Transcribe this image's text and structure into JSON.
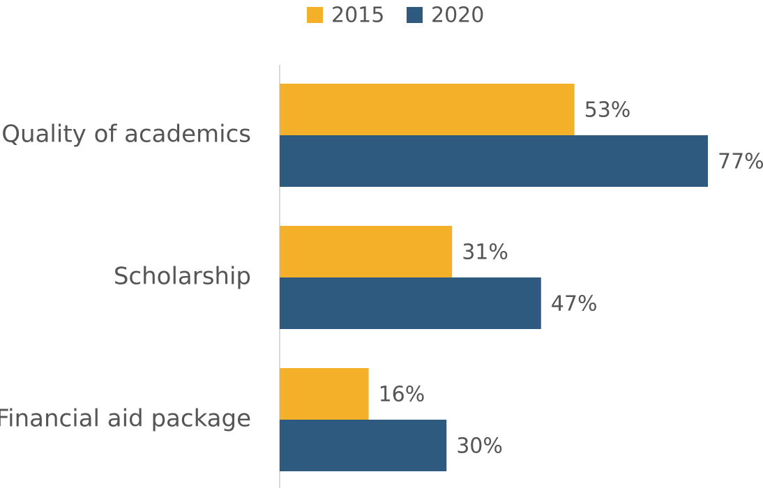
{
  "chart_data": {
    "type": "hbar",
    "categories": [
      "Quality of academics",
      "Scholarship",
      "Financial aid package"
    ],
    "series": [
      {
        "name": "2015",
        "color": "#f5b02a",
        "values": [
          53,
          31,
          16
        ],
        "value_labels": [
          "53%",
          "31%",
          "16%"
        ]
      },
      {
        "name": "2020",
        "color": "#2e5a80",
        "values": [
          77,
          47,
          30
        ],
        "value_labels": [
          "77%",
          "47%",
          "30%"
        ]
      }
    ],
    "legend": "top"
  }
}
